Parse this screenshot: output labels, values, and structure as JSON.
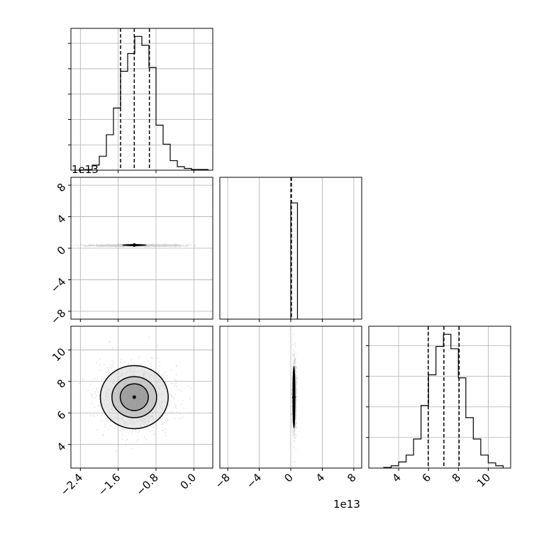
{
  "chart_data": {
    "type": "corner",
    "offset_text": "1e13",
    "panels": [
      {
        "type": "histogram",
        "id": "p00",
        "x_range": [
          -2.6,
          0.4
        ],
        "x_ticks": [
          -2.4,
          -1.6,
          -0.8,
          0.0
        ],
        "y_ticks": [
          200,
          400,
          600,
          800,
          1000
        ],
        "grid": true,
        "bins": [
          {
            "x0": -2.3,
            "x1": -2.15,
            "count": 5
          },
          {
            "x0": -2.15,
            "x1": -2.0,
            "count": 40
          },
          {
            "x0": -2.0,
            "x1": -1.85,
            "count": 110
          },
          {
            "x0": -1.85,
            "x1": -1.7,
            "count": 280
          },
          {
            "x0": -1.7,
            "x1": -1.55,
            "count": 490
          },
          {
            "x0": -1.55,
            "x1": -1.4,
            "count": 780
          },
          {
            "x0": -1.4,
            "x1": -1.25,
            "count": 920
          },
          {
            "x0": -1.25,
            "x1": -1.1,
            "count": 1055
          },
          {
            "x0": -1.1,
            "x1": -0.95,
            "count": 985
          },
          {
            "x0": -0.95,
            "x1": -0.8,
            "count": 810
          },
          {
            "x0": -0.8,
            "x1": -0.65,
            "count": 355
          },
          {
            "x0": -0.65,
            "x1": -0.5,
            "count": 205
          },
          {
            "x0": -0.5,
            "x1": -0.35,
            "count": 75
          },
          {
            "x0": -0.35,
            "x1": -0.2,
            "count": 28
          },
          {
            "x0": -0.2,
            "x1": -0.05,
            "count": 14
          },
          {
            "x0": -0.05,
            "x1": 0.3,
            "count": 6
          }
        ],
        "quantiles": [
          -1.55,
          -1.26,
          -0.94
        ]
      },
      {
        "type": "density",
        "id": "p10",
        "x_range": [
          -2.6,
          0.4
        ],
        "y_range": [
          -9,
          9
        ],
        "x_ticks": [
          -2.4,
          -1.6,
          -0.8,
          0.0
        ],
        "y_ticks": [
          -8,
          -4,
          0,
          4,
          8
        ],
        "y_tick_labels": [
          "−8",
          "−4",
          "0",
          "4",
          "8"
        ],
        "grid": true,
        "center": [
          -1.26,
          0.4
        ],
        "spread": [
          0.45,
          0.06
        ],
        "tail_x_range": [
          -2.0,
          -0.3
        ],
        "contour_levels": [
          [
            0.14,
            0.45
          ],
          [
            0.27,
            0.62
          ],
          [
            0.4,
            0.78
          ],
          [
            0.55,
            0.92
          ]
        ]
      },
      {
        "type": "histogram",
        "id": "p11",
        "x_range": [
          -9,
          9
        ],
        "x_ticks": [
          -8,
          -4,
          0,
          4,
          8
        ],
        "grid": true,
        "bins": [
          {
            "x0": 0.0,
            "x1": 0.85,
            "count": 1000
          }
        ],
        "y_max": 1220,
        "quantiles": [
          0.02,
          0.05,
          0.08
        ]
      },
      {
        "type": "density",
        "id": "p20",
        "x_range": [
          -2.6,
          0.4
        ],
        "y_range": [
          2.5,
          11.5
        ],
        "x_ticks": [
          -2.4,
          -1.6,
          -0.8,
          0.0
        ],
        "x_tick_labels": [
          "−2.4",
          "−1.6",
          "−0.8",
          "0.0"
        ],
        "y_ticks": [
          4,
          6,
          8,
          10
        ],
        "grid": true,
        "center": [
          -1.26,
          7.0
        ],
        "spread": [
          0.35,
          1.0
        ],
        "contour_levels": [
          [
            0.85,
            0.85
          ],
          [
            1.35,
            1.3
          ],
          [
            2.05,
            2.0
          ]
        ]
      },
      {
        "type": "density",
        "id": "p21",
        "x_range": [
          -9,
          9
        ],
        "y_range": [
          2.5,
          11.5
        ],
        "x_ticks": [
          -8,
          -4,
          0,
          4,
          8
        ],
        "x_tick_labels": [
          "−8",
          "−4",
          "0",
          "4",
          "8"
        ],
        "grid": true,
        "center": [
          0.4,
          7.0
        ],
        "spread": [
          0.12,
          1.0
        ],
        "contour_levels": [
          [
            0.45,
            0.95
          ],
          [
            0.7,
            1.45
          ],
          [
            0.95,
            1.95
          ]
        ]
      },
      {
        "type": "histogram",
        "id": "p22",
        "x_range": [
          2.0,
          11.5
        ],
        "x_ticks": [
          4,
          6,
          8,
          10
        ],
        "x_tick_labels": [
          "4",
          "6",
          "8",
          "10"
        ],
        "y_ticks": [
          200,
          400,
          600,
          800
        ],
        "grid": true,
        "bins": [
          {
            "x0": 3.0,
            "x1": 3.5,
            "count": 4
          },
          {
            "x0": 3.5,
            "x1": 4.0,
            "count": 15
          },
          {
            "x0": 4.0,
            "x1": 4.5,
            "count": 40
          },
          {
            "x0": 4.5,
            "x1": 5.0,
            "count": 85
          },
          {
            "x0": 5.0,
            "x1": 5.5,
            "count": 190
          },
          {
            "x0": 5.5,
            "x1": 6.0,
            "count": 410
          },
          {
            "x0": 6.0,
            "x1": 6.5,
            "count": 610
          },
          {
            "x0": 6.5,
            "x1": 7.0,
            "count": 795
          },
          {
            "x0": 7.0,
            "x1": 7.5,
            "count": 875
          },
          {
            "x0": 7.5,
            "x1": 8.0,
            "count": 780
          },
          {
            "x0": 8.0,
            "x1": 8.5,
            "count": 590
          },
          {
            "x0": 8.5,
            "x1": 9.0,
            "count": 330
          },
          {
            "x0": 9.0,
            "x1": 9.5,
            "count": 190
          },
          {
            "x0": 9.5,
            "x1": 10.0,
            "count": 85
          },
          {
            "x0": 10.0,
            "x1": 10.5,
            "count": 34
          },
          {
            "x0": 10.5,
            "x1": 11.0,
            "count": 15
          }
        ],
        "quantiles": [
          5.98,
          7.03,
          8.05
        ]
      }
    ]
  }
}
